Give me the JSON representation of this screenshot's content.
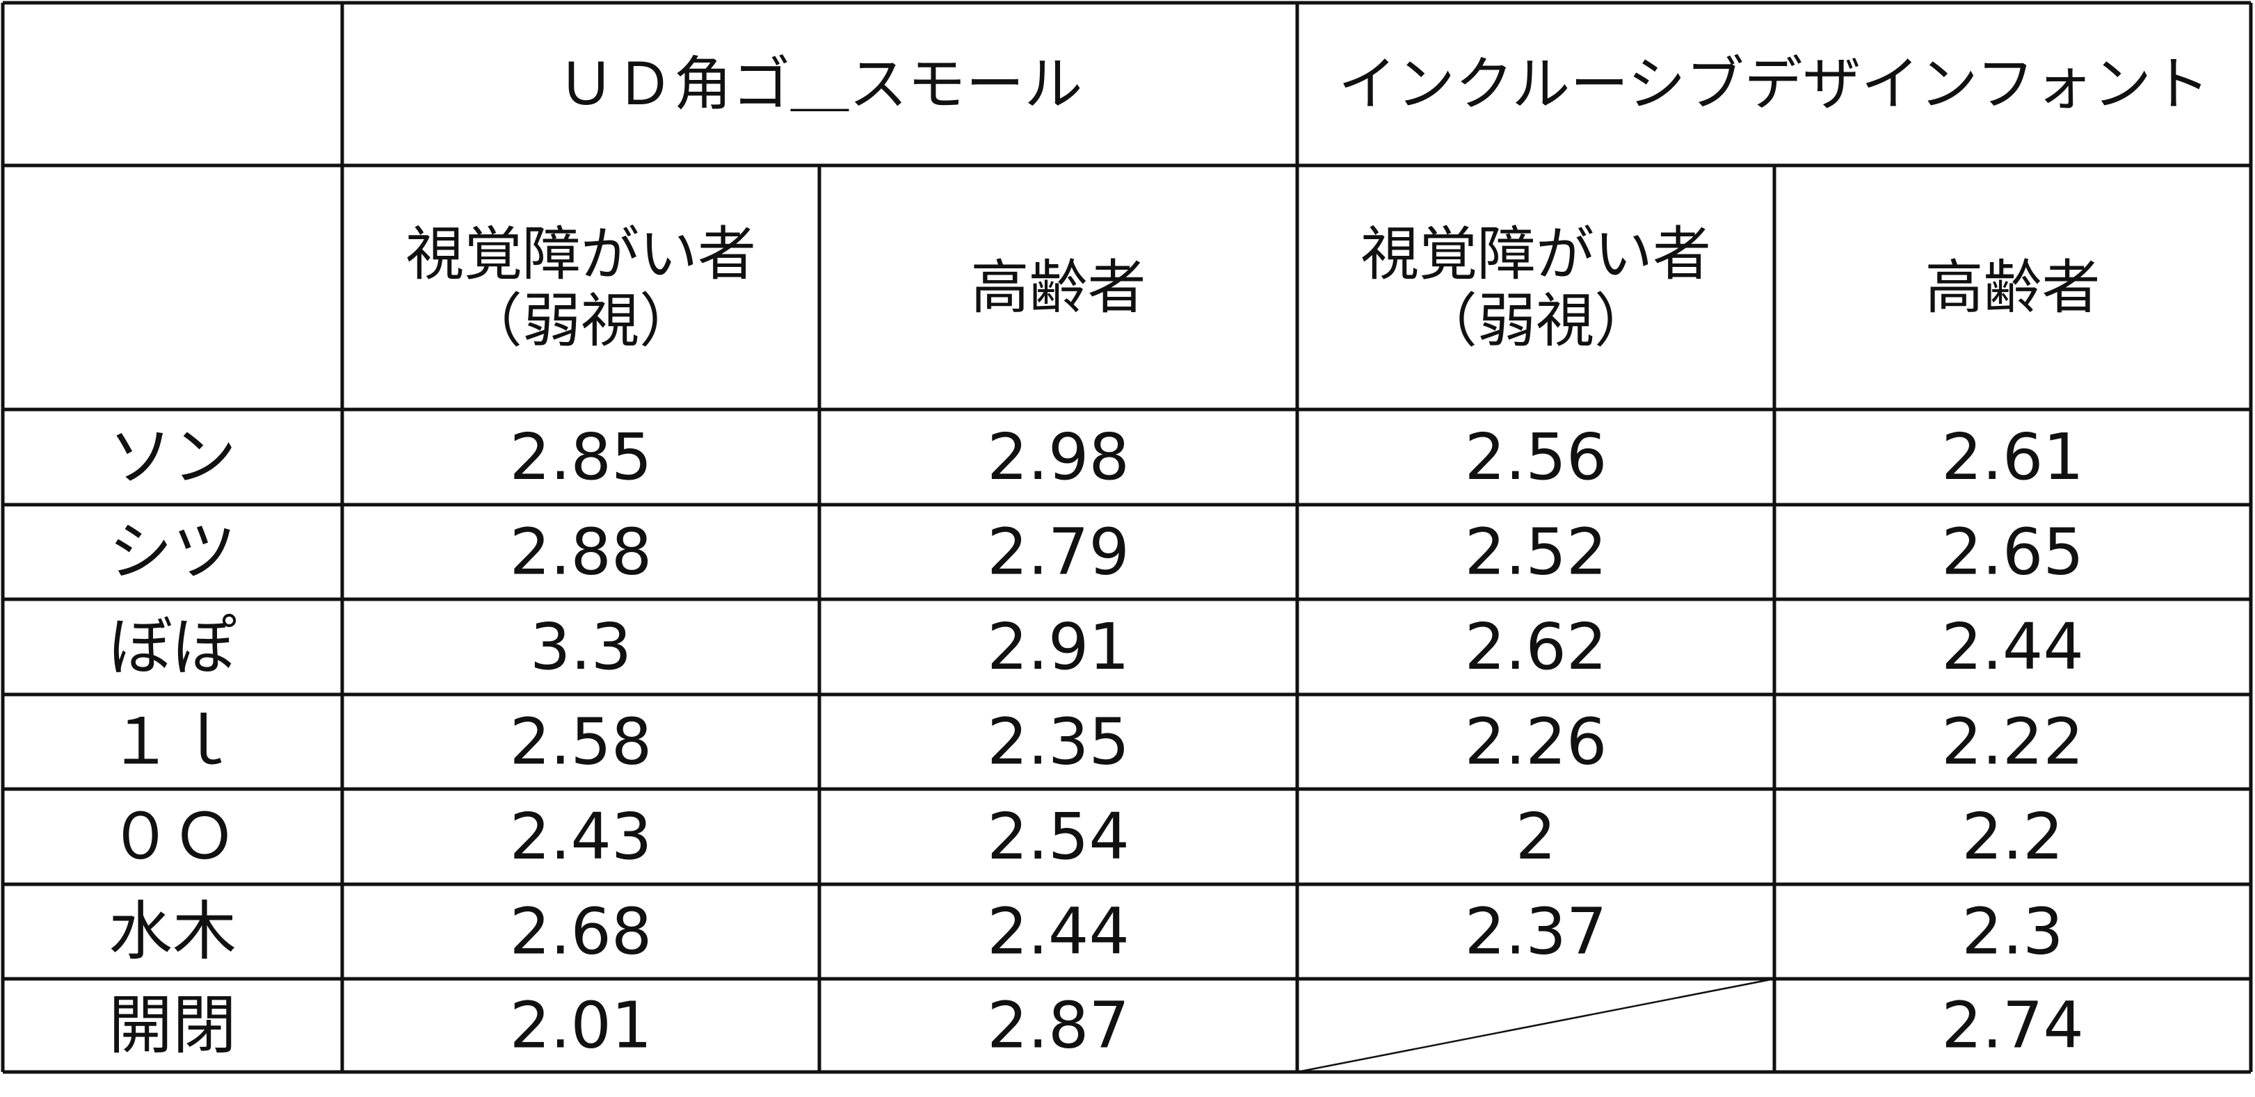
{
  "header": {
    "groups": [
      "ＵＤ角ゴ＿スモール",
      "インクルーシブデザインフォント"
    ],
    "subheaders": [
      [
        "視覚障がい者",
        "（弱視）"
      ],
      [
        "高齢者"
      ],
      [
        "視覚障がい者",
        "（弱視）"
      ],
      [
        "高齢者"
      ]
    ]
  },
  "table": {
    "rows": [
      {
        "label": "ソン",
        "values": [
          2.85,
          2.98,
          2.56,
          2.61
        ]
      },
      {
        "label": "シツ",
        "values": [
          2.88,
          2.79,
          2.52,
          2.65
        ]
      },
      {
        "label": "ぼぽ",
        "values": [
          3.3,
          2.91,
          2.62,
          2.44
        ]
      },
      {
        "label": "１ｌ",
        "values": [
          2.58,
          2.35,
          2.26,
          2.22
        ]
      },
      {
        "label": "０Ｏ",
        "values": [
          2.43,
          2.54,
          2,
          2.2
        ]
      },
      {
        "label": "水木",
        "values": [
          2.68,
          2.44,
          2.37,
          2.3
        ]
      },
      {
        "label": "開閉",
        "values": [
          2.01,
          2.87,
          null,
          2.74
        ]
      }
    ]
  }
}
